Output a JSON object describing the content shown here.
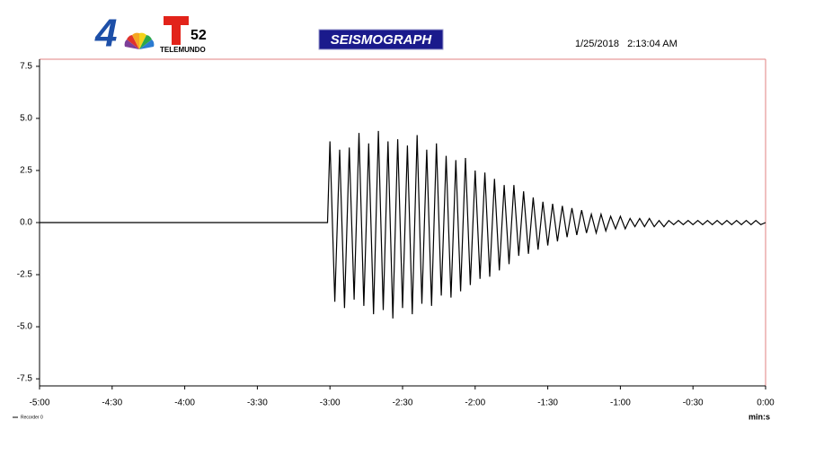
{
  "header": {
    "logo_number": "4",
    "logo_channel": "52",
    "logo_network": "TELEMUNDO",
    "badge": "SEISMOGRAPH",
    "timestamp": "1/25/2018   2:13:04 AM"
  },
  "chart_data": {
    "type": "line",
    "x_label": "min:s",
    "xlim": [
      -300,
      0
    ],
    "xticks": [
      {
        "value": -300,
        "label": "-5:00"
      },
      {
        "value": -270,
        "label": "-4:30"
      },
      {
        "value": -240,
        "label": "-4:00"
      },
      {
        "value": -210,
        "label": "-3:30"
      },
      {
        "value": -180,
        "label": "-3:00"
      },
      {
        "value": -150,
        "label": "-2:30"
      },
      {
        "value": -120,
        "label": "-2:00"
      },
      {
        "value": -90,
        "label": "-1:30"
      },
      {
        "value": -60,
        "label": "-1:00"
      },
      {
        "value": -30,
        "label": "-0:30"
      },
      {
        "value": 0,
        "label": "0:00"
      }
    ],
    "ylim": [
      -7.84,
      7.84
    ],
    "yticks": [
      7.5,
      {
        "value": 5,
        "label": "5.0"
      },
      2.5,
      {
        "value": 0,
        "label": "0.0"
      },
      -2.5,
      {
        "value": -5,
        "label": "-5.0"
      },
      -7.5
    ],
    "legend": "bottom-left",
    "series": [
      {
        "name": "Recorder 0",
        "color": "#000000",
        "x": [
          -300,
          -181,
          -180,
          -178,
          -176,
          -174,
          -172,
          -170,
          -168,
          -166,
          -164,
          -162,
          -160,
          -158,
          -156,
          -154,
          -152,
          -150,
          -148,
          -146,
          -144,
          -142,
          -140,
          -138,
          -136,
          -134,
          -132,
          -130,
          -128,
          -126,
          -124,
          -122,
          -120,
          -118,
          -116,
          -114,
          -112,
          -110,
          -108,
          -106,
          -104,
          -102,
          -100,
          -98,
          -96,
          -94,
          -92,
          -90,
          -88,
          -86,
          -84,
          -82,
          -80,
          -78,
          -76,
          -74,
          -72,
          -70,
          -68,
          -66,
          -64,
          -62,
          -60,
          -58,
          -56,
          -54,
          -52,
          -50,
          -48,
          -46,
          -44,
          -42,
          -40,
          -38,
          -36,
          -34,
          -32,
          -30,
          -28,
          -26,
          -24,
          -22,
          -20,
          -18,
          -16,
          -14,
          -12,
          -10,
          -8,
          -6,
          -4,
          -2,
          0
        ],
        "values": [
          0,
          0,
          3.9,
          -3.8,
          3.5,
          -4.1,
          3.6,
          -3.7,
          4.3,
          -4.0,
          3.8,
          -4.4,
          4.4,
          -4.2,
          3.9,
          -4.6,
          4.0,
          -4.1,
          3.7,
          -4.4,
          4.2,
          -3.9,
          3.5,
          -4.0,
          3.8,
          -3.5,
          3.2,
          -3.6,
          3.0,
          -3.3,
          3.1,
          -3.0,
          2.5,
          -2.7,
          2.4,
          -2.6,
          2.1,
          -2.3,
          1.8,
          -2.0,
          1.8,
          -1.6,
          1.5,
          -1.5,
          1.2,
          -1.3,
          1.0,
          -1.1,
          0.9,
          -0.9,
          0.8,
          -0.7,
          0.7,
          -0.6,
          0.6,
          -0.5,
          0.4,
          -0.5,
          0.4,
          -0.4,
          0.3,
          -0.3,
          0.3,
          -0.3,
          0.2,
          -0.2,
          0.2,
          -0.2,
          0.2,
          -0.2,
          0.1,
          -0.2,
          0.1,
          -0.1,
          0.1,
          -0.1,
          0.1,
          -0.1,
          0.1,
          -0.1,
          0.1,
          -0.1,
          0.1,
          -0.1,
          0.1,
          -0.1,
          0.1,
          -0.1,
          0.1,
          -0.1,
          0.1,
          -0.1,
          0
        ]
      }
    ]
  }
}
